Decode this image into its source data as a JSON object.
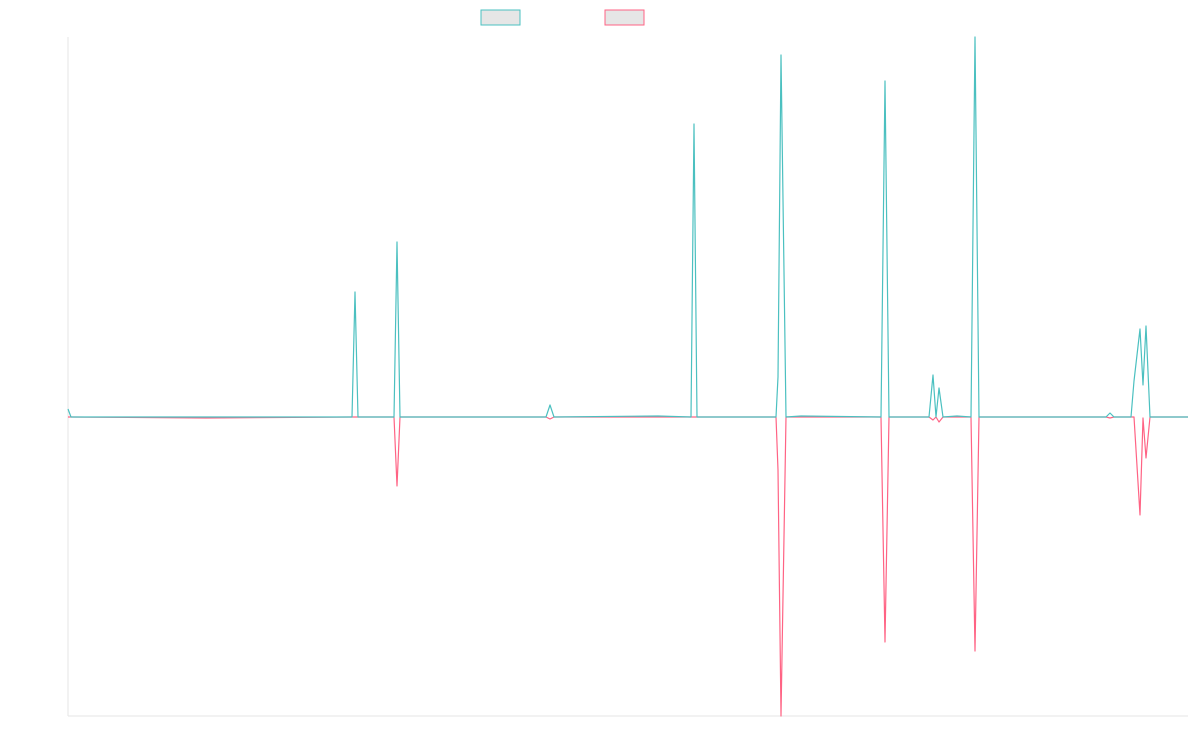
{
  "chart_data": {
    "type": "line",
    "x": [
      0,
      3,
      138,
      284,
      287,
      290,
      326,
      329,
      332,
      478,
      482,
      486,
      590,
      623,
      626,
      629,
      708,
      710,
      713,
      718,
      733,
      813,
      817,
      821,
      861,
      865,
      868,
      871,
      875,
      889,
      903,
      907,
      911,
      1038,
      1042,
      1046,
      1063,
      1066,
      1072,
      1075,
      1078,
      1082,
      1120
    ],
    "xlim": [
      0,
      1120
    ],
    "ylim": [
      -299,
      380
    ],
    "series": [
      {
        "color": "#4bc0c0",
        "values": [
          8,
          0,
          0,
          0,
          125,
          0,
          0,
          175,
          0,
          0,
          12,
          0,
          1,
          0,
          293,
          0,
          0,
          40,
          362,
          0,
          1,
          0,
          336,
          0,
          0,
          42,
          0,
          29,
          0,
          1,
          0,
          380,
          0,
          0,
          4,
          0,
          0,
          36,
          88,
          32,
          91,
          0,
          0
        ]
      },
      {
        "color": "#ff6384",
        "values": [
          0,
          0,
          -1,
          0,
          0,
          0,
          0,
          -69,
          0,
          0,
          -2,
          0,
          0,
          0,
          0,
          0,
          0,
          -53,
          -299,
          0,
          0,
          0,
          -225,
          0,
          0,
          -3,
          0,
          -5,
          0,
          0,
          0,
          -234,
          0,
          0,
          -1,
          0,
          0,
          0,
          -98,
          -1,
          -41,
          0,
          0
        ]
      }
    ]
  }
}
